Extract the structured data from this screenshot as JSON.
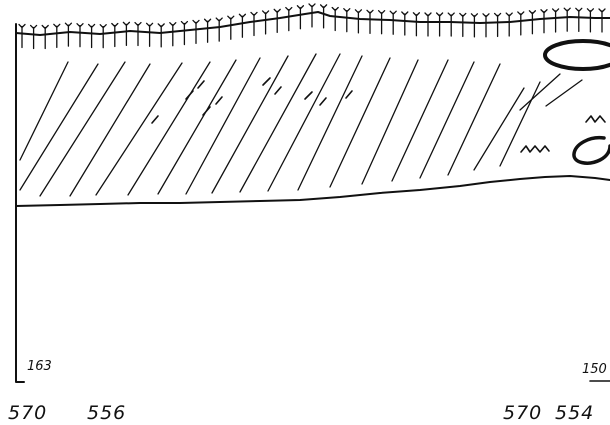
{
  "drawing": {
    "kind": "archaeological section drawing",
    "ink_color": "#111111",
    "background_color": "#ffffff"
  },
  "labels": {
    "left_number": "163",
    "right_number": "150",
    "left_coord_a": "570",
    "left_coord_b": "556",
    "right_coord_a": "570",
    "right_coord_b": "554"
  }
}
